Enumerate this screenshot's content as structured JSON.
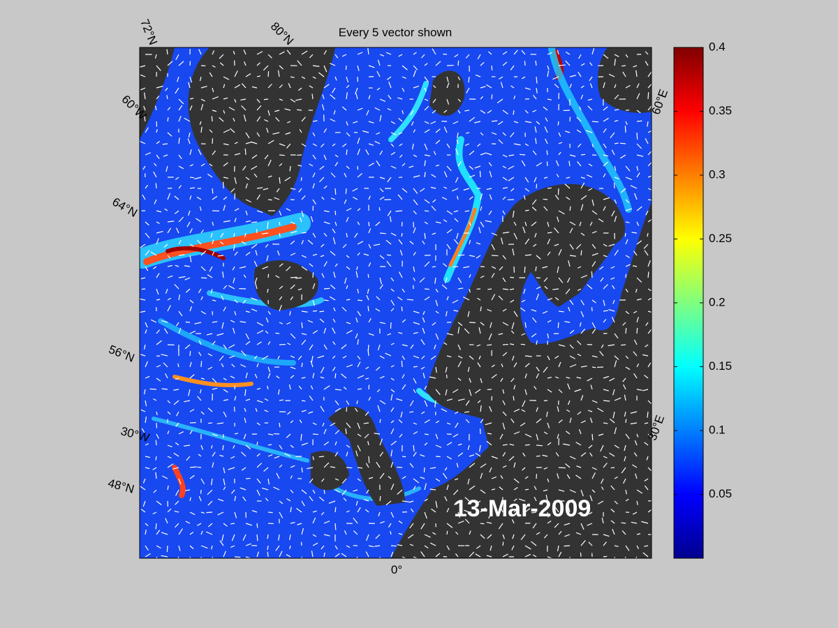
{
  "title": "Every 5 vector shown",
  "date": "13-Mar-2009",
  "graticule_labels": [
    "72°N",
    "80°N",
    "60°W",
    "64°N",
    "56°N",
    "30°W",
    "48°N",
    "0°",
    "30°E",
    "60°E"
  ],
  "colorbar": {
    "lim": [
      0,
      0.4
    ],
    "ticks": [
      0.05,
      0.1,
      0.15,
      0.2,
      0.25,
      0.3,
      0.35,
      0.4
    ]
  }
}
